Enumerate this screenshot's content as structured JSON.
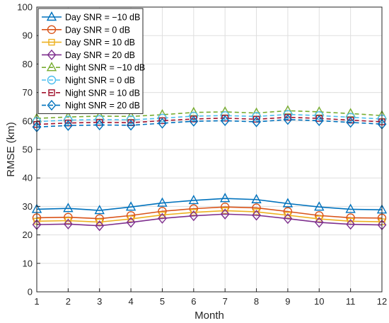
{
  "chart_data": {
    "type": "line",
    "title": "",
    "xlabel": "Month",
    "ylabel": "RMSE (km)",
    "xlim": [
      1,
      12
    ],
    "ylim": [
      0,
      100
    ],
    "xticks": [
      1,
      2,
      3,
      4,
      5,
      6,
      7,
      8,
      9,
      10,
      11,
      12
    ],
    "yticks": [
      0,
      10,
      20,
      30,
      40,
      50,
      60,
      70,
      80,
      90,
      100
    ],
    "grid": true,
    "legend_position": "top-left",
    "x": [
      1,
      2,
      3,
      4,
      5,
      6,
      7,
      8,
      9,
      10,
      11,
      12
    ],
    "series": [
      {
        "name": "Day SNR = −10 dB",
        "color": "#0072BD",
        "marker": "triangle",
        "dash": "solid",
        "values": [
          29.0,
          29.3,
          28.6,
          29.8,
          31.2,
          32.1,
          32.8,
          32.4,
          31.0,
          29.8,
          29.0,
          28.8
        ]
      },
      {
        "name": "Day SNR = 0 dB",
        "color": "#D95319",
        "marker": "circle",
        "dash": "solid",
        "values": [
          26.0,
          26.2,
          25.7,
          26.8,
          28.3,
          29.2,
          29.8,
          29.5,
          28.2,
          26.8,
          26.0,
          25.9
        ]
      },
      {
        "name": "Day SNR = 10 dB",
        "color": "#EDB120",
        "marker": "square",
        "dash": "solid",
        "values": [
          24.8,
          25.0,
          24.5,
          25.6,
          27.0,
          27.9,
          28.5,
          28.1,
          26.9,
          25.6,
          24.8,
          24.6
        ]
      },
      {
        "name": "Day SNR = 20 dB",
        "color": "#7E2F8E",
        "marker": "diamond",
        "dash": "solid",
        "values": [
          23.6,
          23.8,
          23.2,
          24.4,
          25.8,
          26.7,
          27.3,
          26.9,
          25.7,
          24.4,
          23.7,
          23.5
        ]
      },
      {
        "name": "Night SNR = −10 dB",
        "color": "#77AC30",
        "marker": "triangle",
        "dash": "dashed",
        "values": [
          60.9,
          61.4,
          61.7,
          61.6,
          62.2,
          63.0,
          63.2,
          62.8,
          63.6,
          63.2,
          62.6,
          61.9
        ]
      },
      {
        "name": "Night SNR = 0 dB",
        "color": "#4DBEEE",
        "marker": "circle",
        "dash": "dashed",
        "values": [
          59.8,
          60.3,
          60.5,
          60.4,
          61.0,
          61.7,
          61.9,
          61.6,
          62.3,
          61.9,
          61.3,
          60.7
        ]
      },
      {
        "name": "Night SNR = 10 dB",
        "color": "#A2142F",
        "marker": "square",
        "dash": "dashed",
        "values": [
          58.8,
          59.3,
          59.5,
          59.4,
          60.1,
          60.7,
          61.0,
          60.6,
          61.3,
          60.9,
          60.3,
          59.7
        ]
      },
      {
        "name": "Night SNR = 20 dB",
        "color": "#0072BD",
        "marker": "diamond",
        "dash": "dashed",
        "values": [
          57.9,
          58.4,
          58.6,
          58.5,
          59.2,
          59.9,
          60.1,
          59.7,
          60.5,
          60.1,
          59.5,
          58.9
        ]
      }
    ]
  }
}
